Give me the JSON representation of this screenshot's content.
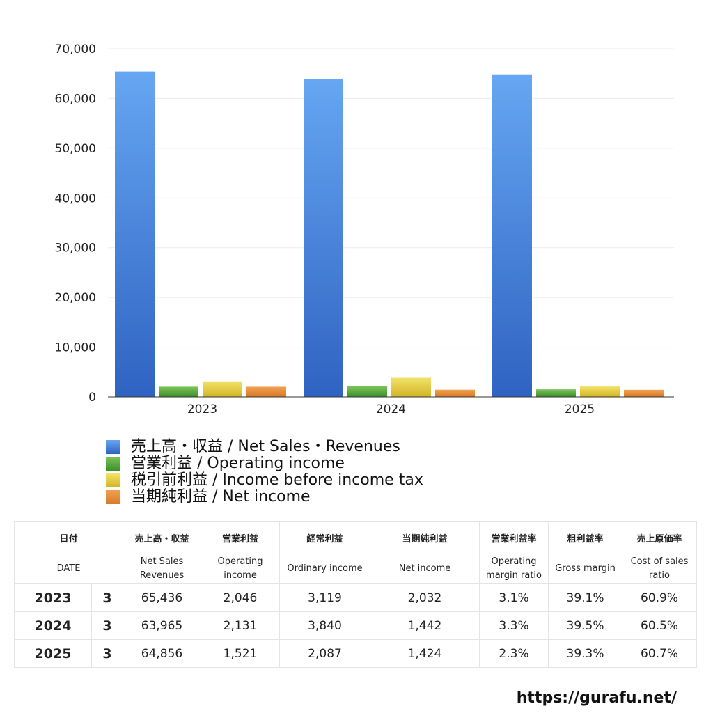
{
  "chart_data": {
    "type": "bar",
    "categories": [
      "2023",
      "2024",
      "2025"
    ],
    "series": [
      {
        "name": "売上高・収益 / Net Sales・Revenues",
        "values": [
          65436,
          63965,
          64856
        ],
        "color_top": "#66a6f2",
        "color_bottom": "#2f63c2"
      },
      {
        "name": "営業利益 / Operating income",
        "values": [
          2046,
          2131,
          1521
        ],
        "color_top": "#7cc35a",
        "color_bottom": "#3d8f2c"
      },
      {
        "name": "税引前利益 / Income before income tax",
        "values": [
          3119,
          3840,
          2087
        ],
        "color_top": "#f2e26a",
        "color_bottom": "#d2b424"
      },
      {
        "name": "当期純利益 / Net income",
        "values": [
          2032,
          1442,
          1424
        ],
        "color_top": "#f0a050",
        "color_bottom": "#d97a28"
      }
    ],
    "ylim": [
      0,
      70000
    ],
    "yticks": [
      0,
      10000,
      20000,
      30000,
      40000,
      50000,
      60000,
      70000
    ],
    "ytick_labels": [
      "0",
      "10,000",
      "20,000",
      "30,000",
      "40,000",
      "50,000",
      "60,000",
      "70,000"
    ],
    "grid": true,
    "legend_position": "bottom"
  },
  "table": {
    "header_jp": [
      "日付",
      "売上高・収益",
      "営業利益",
      "経常利益",
      "当期純利益",
      "営業利益率",
      "粗利益率",
      "売上原価率"
    ],
    "header_en": [
      [
        "DATE"
      ],
      [
        "Net Sales",
        "Revenues"
      ],
      [
        "Operating",
        "income"
      ],
      [
        "Ordinary income"
      ],
      [
        "Net income"
      ],
      [
        "Operating",
        "margin ratio"
      ],
      [
        "Gross margin"
      ],
      [
        "Cost of sales",
        "ratio"
      ]
    ],
    "rows": [
      {
        "year": "2023",
        "period": "3",
        "sales": "65,436",
        "op": "2,046",
        "ord": "3,119",
        "net": "2,032",
        "opm": "3.1%",
        "gm": "39.1%",
        "cos": "60.9%"
      },
      {
        "year": "2024",
        "period": "3",
        "sales": "63,965",
        "op": "2,131",
        "ord": "3,840",
        "net": "1,442",
        "opm": "3.3%",
        "gm": "39.5%",
        "cos": "60.5%"
      },
      {
        "year": "2025",
        "period": "3",
        "sales": "64,856",
        "op": "1,521",
        "ord": "2,087",
        "net": "1,424",
        "opm": "2.3%",
        "gm": "39.3%",
        "cos": "60.7%"
      }
    ]
  },
  "watermark": "https://gurafu.net/"
}
